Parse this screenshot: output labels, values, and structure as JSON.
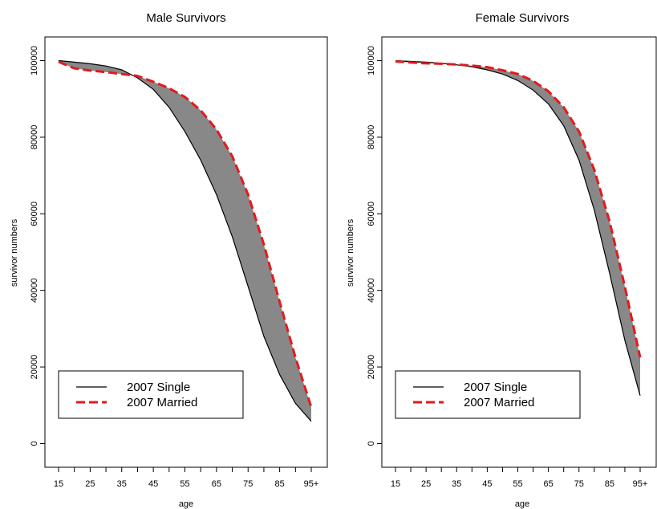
{
  "chart_data": [
    {
      "type": "area",
      "title": "Male Survivors",
      "xlabel": "age",
      "ylabel": "survivor numbers",
      "x_ticks": [
        "15",
        "25",
        "35",
        "45",
        "55",
        "65",
        "75",
        "85",
        "95+"
      ],
      "y_ticks": [
        "0",
        "20000",
        "40000",
        "60000",
        "80000",
        "100000"
      ],
      "ylim": [
        -2000,
        102000
      ],
      "legend": {
        "placement": "bottom-left"
      },
      "series": [
        {
          "name": "2007 Single",
          "style": "solid",
          "color": "#000000",
          "x": [
            15,
            20,
            25,
            30,
            35,
            40,
            45,
            50,
            55,
            60,
            65,
            70,
            75,
            80,
            85,
            90,
            95
          ],
          "values": [
            100000,
            99600,
            99200,
            98600,
            97600,
            95500,
            92500,
            87800,
            81500,
            74000,
            65000,
            54000,
            41000,
            28000,
            18000,
            10500,
            5800
          ]
        },
        {
          "name": "2007 Married",
          "style": "dashed",
          "color": "#e31a1c",
          "x": [
            15,
            20,
            25,
            30,
            35,
            40,
            45,
            50,
            55,
            60,
            65,
            70,
            75,
            80,
            85,
            90,
            95
          ],
          "values": [
            99700,
            98000,
            97400,
            97000,
            96500,
            96000,
            94500,
            92800,
            90500,
            87000,
            82000,
            75000,
            65000,
            52000,
            37000,
            22500,
            9500
          ]
        }
      ]
    },
    {
      "type": "area",
      "title": "Female Survivors",
      "xlabel": "age",
      "ylabel": "survivor numbers",
      "x_ticks": [
        "15",
        "25",
        "35",
        "45",
        "55",
        "65",
        "75",
        "85",
        "95+"
      ],
      "y_ticks": [
        "0",
        "20000",
        "40000",
        "60000",
        "80000",
        "100000"
      ],
      "ylim": [
        -2000,
        102000
      ],
      "legend": {
        "placement": "bottom-left"
      },
      "series": [
        {
          "name": "2007 Single",
          "style": "solid",
          "color": "#000000",
          "x": [
            15,
            20,
            25,
            30,
            35,
            40,
            45,
            50,
            55,
            60,
            65,
            70,
            75,
            80,
            85,
            90,
            95
          ],
          "values": [
            100000,
            99800,
            99600,
            99300,
            98900,
            98400,
            97600,
            96500,
            94800,
            92300,
            88700,
            83000,
            74000,
            61000,
            44500,
            27000,
            12500
          ]
        },
        {
          "name": "2007 Married",
          "style": "dashed",
          "color": "#e31a1c",
          "x": [
            15,
            20,
            25,
            30,
            35,
            40,
            45,
            50,
            55,
            60,
            65,
            70,
            75,
            80,
            85,
            90,
            95
          ],
          "values": [
            99800,
            99500,
            99300,
            99200,
            99000,
            98700,
            98300,
            97500,
            96500,
            94700,
            92000,
            87800,
            81500,
            71500,
            58000,
            41000,
            22500
          ]
        }
      ]
    }
  ],
  "colors": {
    "fill": "#888888",
    "single": "#000000",
    "married": "#e31a1c"
  }
}
